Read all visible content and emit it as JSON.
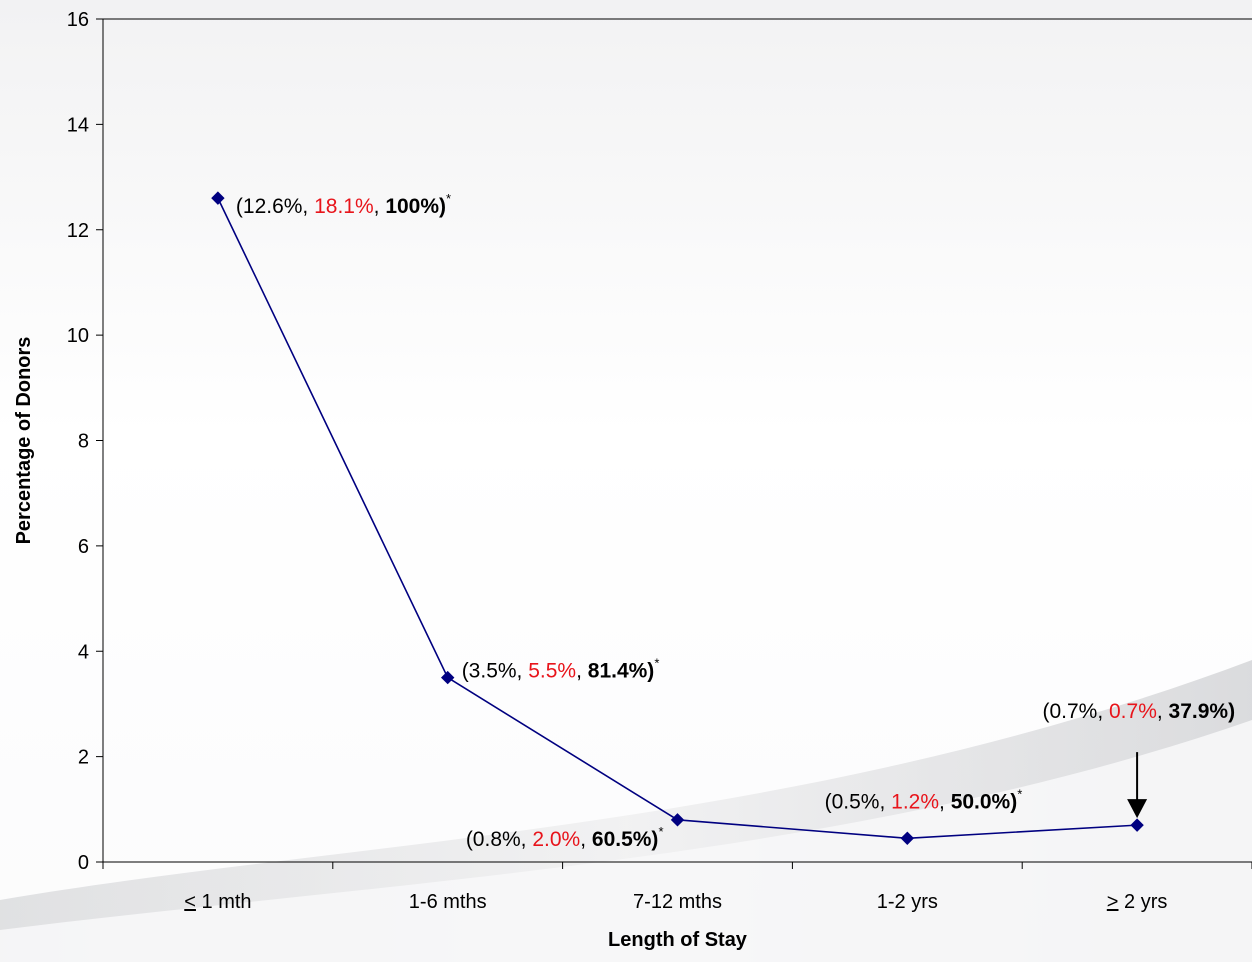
{
  "chart_data": {
    "type": "line",
    "title": "",
    "xlabel": "Length of Stay",
    "ylabel": "Percentage of Donors",
    "categories": [
      "≤ 1 mth",
      "1-6 mths",
      "7-12 mths",
      "1-2 yrs",
      "≥ 2 yrs"
    ],
    "category_display": [
      {
        "main": "1 mth",
        "sym": ">",
        "sym_kind": "lte"
      },
      {
        "main": "1-6 mths"
      },
      {
        "main": "7-12 mths"
      },
      {
        "main": "1-2 yrs"
      },
      {
        "main": "2 yrs",
        "sym": ">",
        "sym_kind": "gte"
      }
    ],
    "values": [
      12.6,
      3.5,
      0.8,
      0.45,
      0.7
    ],
    "ylim": [
      0,
      16
    ],
    "yticks": [
      0,
      2,
      4,
      6,
      8,
      10,
      12,
      14,
      16
    ],
    "grid": false,
    "legend": "none",
    "colors": {
      "line": "#000080",
      "marker": "#000080",
      "highlight": "#e8141b"
    },
    "annotations": [
      {
        "open": "(12.6%, ",
        "red": "18.1%",
        "mid": ", ",
        "bold": "100%)",
        "star": "*"
      },
      {
        "open": "(3.5%, ",
        "red": "5.5%",
        "mid": ", ",
        "bold": "81.4%)",
        "star": "*"
      },
      {
        "open": "(0.8%, ",
        "red": "2.0%",
        "mid": ", ",
        "bold": "60.5%)",
        "star": "*"
      },
      {
        "open": "(0.5%, ",
        "red": "1.2%",
        "mid": ", ",
        "bold": "50.0%)",
        "star": "*"
      },
      {
        "open": "(0.7%, ",
        "red": "0.7%",
        "mid": ", ",
        "bold": "37.9%)",
        "star": ""
      }
    ]
  }
}
